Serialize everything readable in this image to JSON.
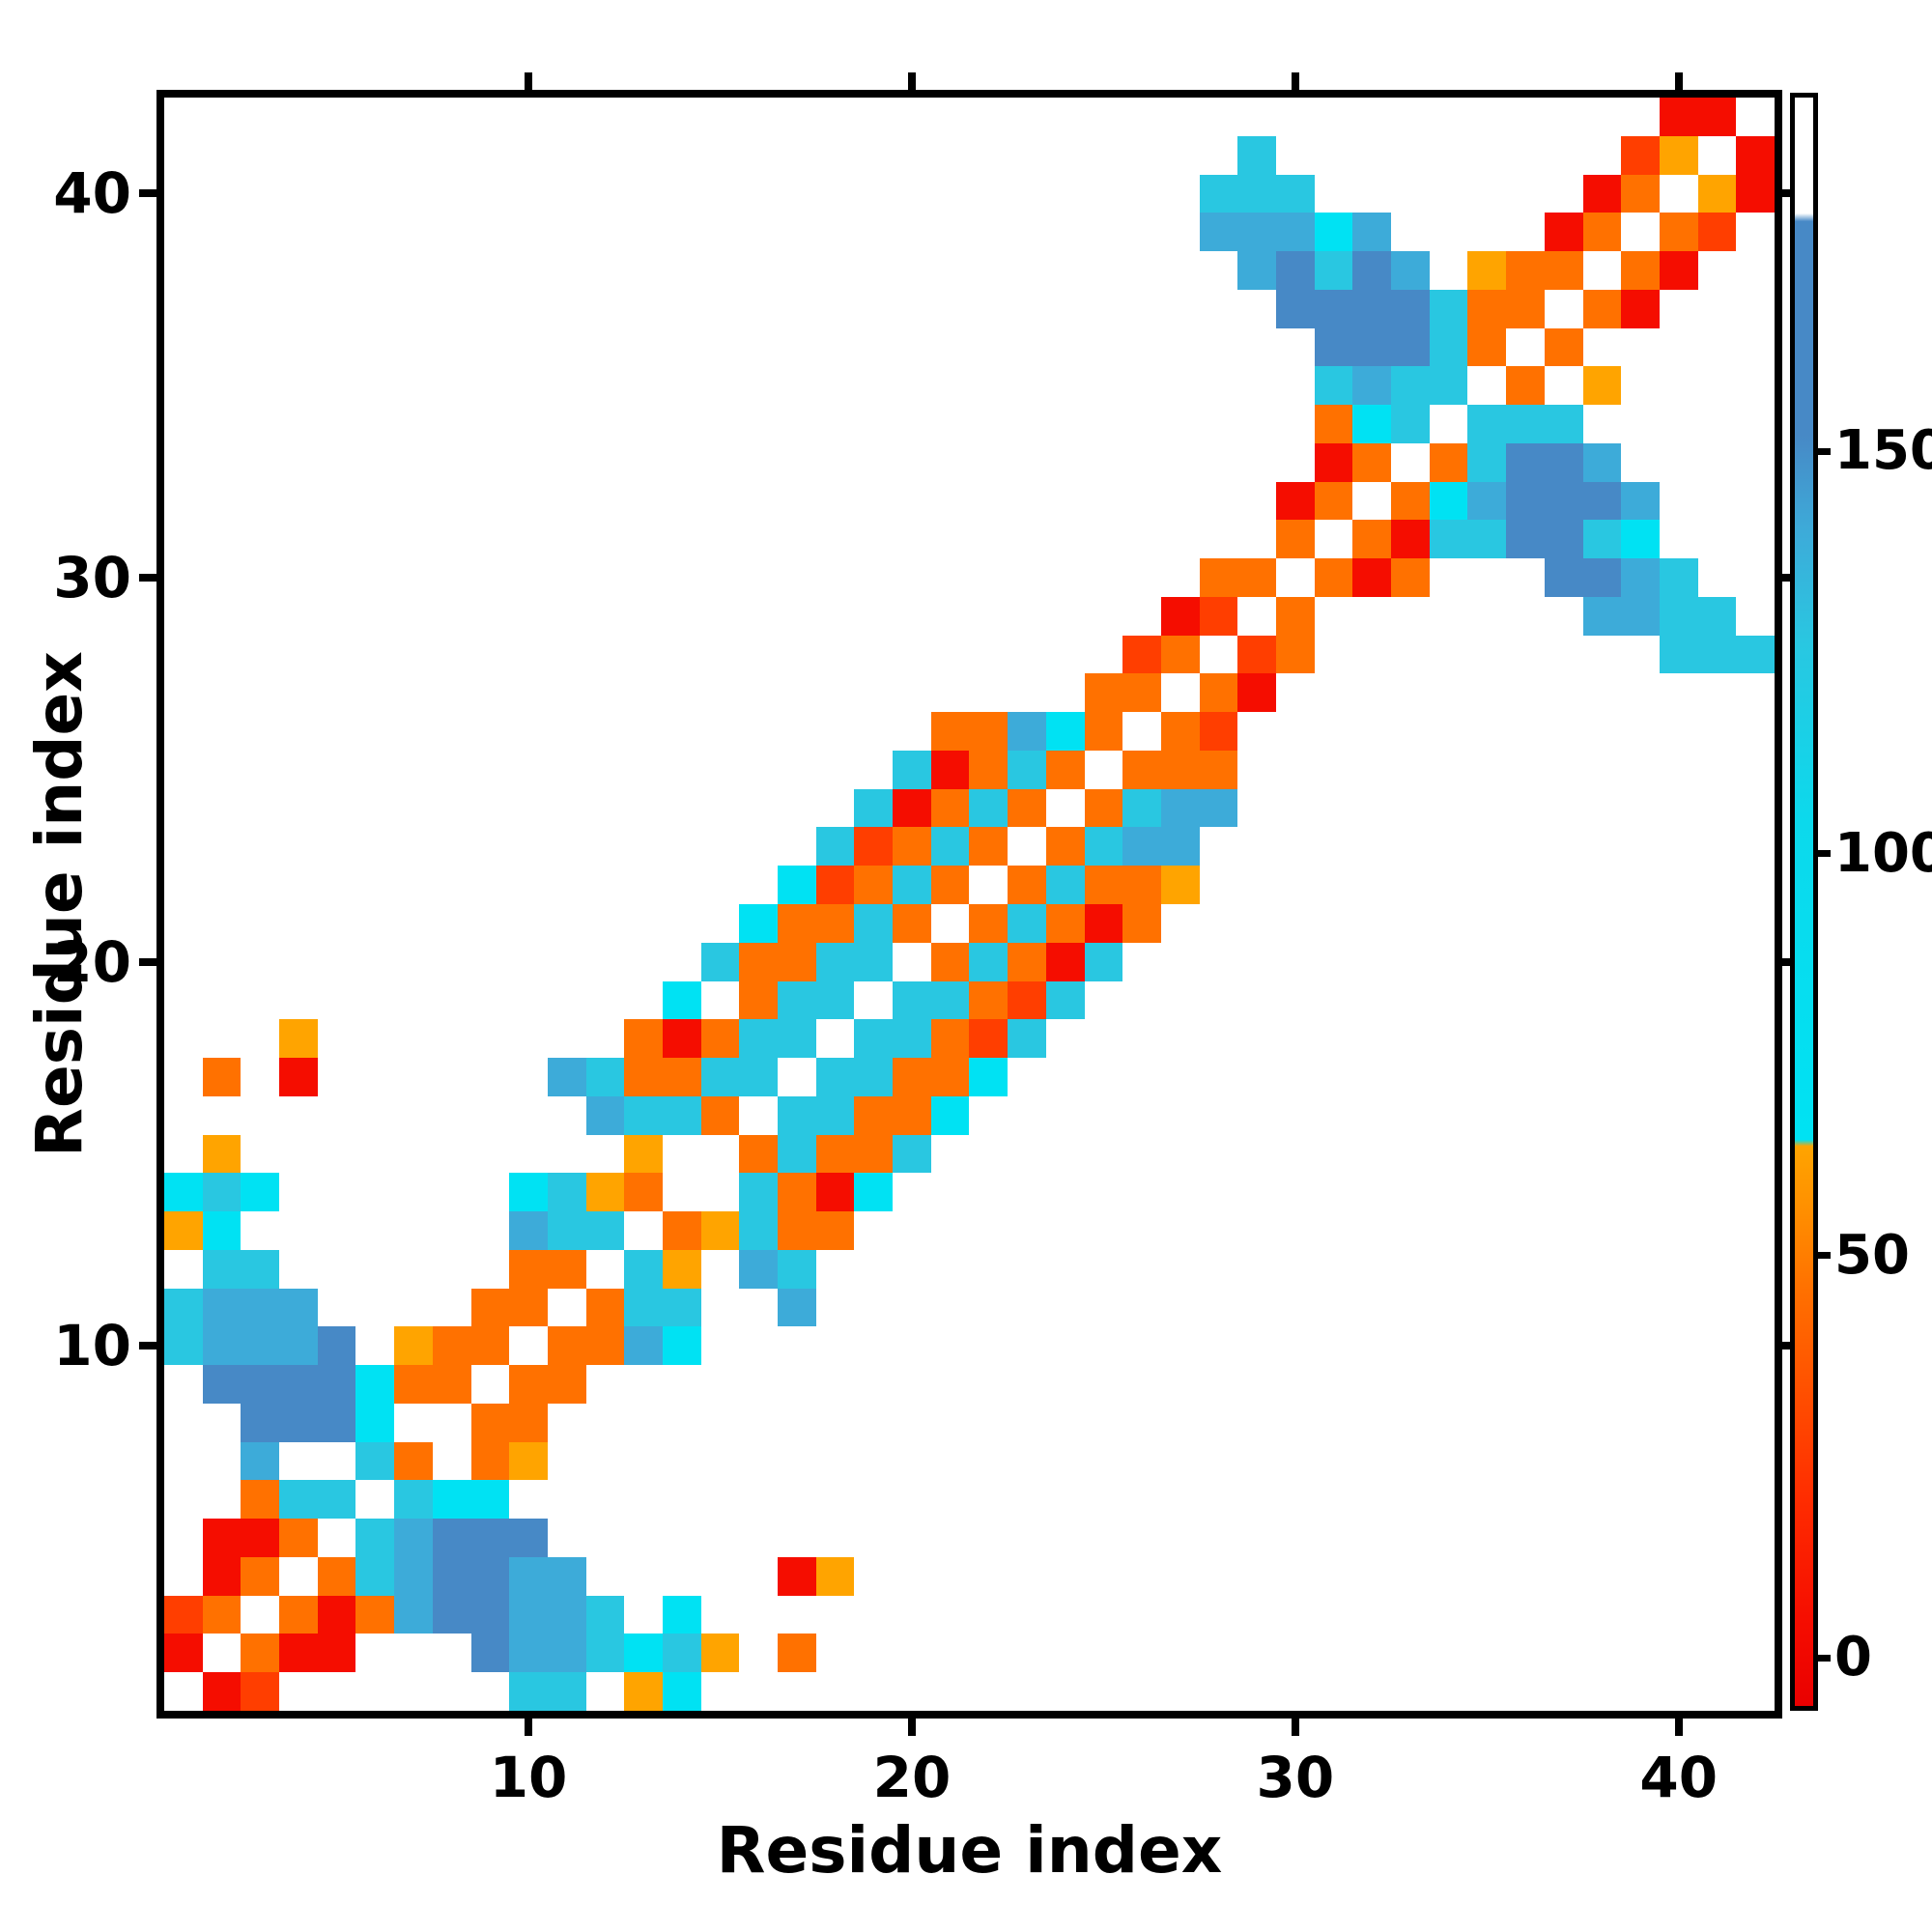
{
  "figure": {
    "x_axis": {
      "label": "Residue index",
      "ticks": [
        10,
        20,
        30,
        40
      ],
      "range": [
        0.5,
        42.5
      ]
    },
    "y_axis": {
      "label": "Residue index",
      "ticks": [
        10,
        20,
        30,
        40
      ],
      "range": [
        0.5,
        42.5
      ]
    },
    "colorbar": {
      "ticks": [
        0,
        50,
        100,
        150
      ],
      "value_range": [
        -6,
        194
      ],
      "gradient_stops": [
        [
          0.0,
          "#e90000"
        ],
        [
          0.05,
          "#f50c00"
        ],
        [
          0.13,
          "#ff2d00"
        ],
        [
          0.2,
          "#ff5200"
        ],
        [
          0.26,
          "#ff7100"
        ],
        [
          0.31,
          "#ff9000"
        ],
        [
          0.348,
          "#ffa400"
        ],
        [
          0.352,
          "#00e2f3"
        ],
        [
          0.55,
          "#0cd9ec"
        ],
        [
          0.66,
          "#29c7e1"
        ],
        [
          0.73,
          "#3dabd9"
        ],
        [
          0.79,
          "#4789c6"
        ],
        [
          0.923,
          "#4789c6"
        ],
        [
          0.928,
          "#ffffff"
        ],
        [
          1.0,
          "#ffffff"
        ]
      ]
    }
  },
  "chart_data": {
    "type": "heatmap",
    "title": "",
    "xlabel": "Residue index",
    "ylabel": "Residue index",
    "n_residues": 42,
    "grid": false,
    "legend_position": "right-colorbar",
    "palette": {
      "R": "#f50d00",
      "r": "#ff3e00",
      "o": "#ff7100",
      "a": "#ffa400",
      "c": "#00e2f3",
      "C": "#29c7e1",
      "s": "#3dabd9",
      "b": "#4789c6",
      ".": null
    },
    "palette_approx_values": {
      "R": 5,
      "r": 25,
      "o": 45,
      "a": 62,
      "c": 85,
      "C": 120,
      "s": 142,
      "b": 160,
      ".": null
    },
    "rows_order": "bottom-to-top (row 1 = residue 1 at bottom), 42 chars = columns 1..42",
    "matrix_rows_bottom_to_top": [
      ".Rr......CC.ac............................",
      "R.oRR...bssCcCa.o.........................",
      "ro.oRosbbssC.c............................",
      ".Ro.oCsbbss.....Ra........................",
      ".RRo.Csbbb................................",
      "..oCC.Ccc.................................",
      "..s..Co.oa................................",
      "..bbbc..oo................................",
      ".bbbbcoo.oo...............................",
      "Csssb.aoo.oosc............................",
      "Csss....oo.oCC..s.........................",
      ".CC......oo.Ca.sC.........................",
      "ac.......sCC.oaCoo........................",
      "cCc......cCao..CoRc.......................",
      ".a..........a..oCooC......................",
      "...........sCCo.CCooc.....................",
      ".o.R......sCooCC.CCooc....................",
      "...a........oRoCC.CCorC...................",
      ".............c.oCC.CCorC..................",
      "..............CooCC.oCoRC.................",
      "...............cooCo.oCoRo................",
      "................croCo.oCooa...............",
      ".................CroCo.oCss...............",
      "..................CRoCo.oCss..............",
      "...................CRoCo.ooo..............",
      "....................oosco.or..............",
      "........................oo.oR.............",
      ".........................ro.ro.........CCC",
      "..........................Rr.o.......ssCC.",
      "...........................oo.oRo...bbsC..",
      ".............................o.oRCCbbCc...",
      ".............................Ro.ocsbbbs...",
      "..............................Ro.oCbbs....",
      "..............................ocC.CCC.....",
      "..............................CsCC.o.a....",
      "..............................bbbCo.o.....",
      ".............................bbbbCoo.oR...",
      "............................sbCbs.aoo.oR..",
      "...........................ssscs....Ro.or.",
      "...........................CCC.......Ro.aR",
      "............................C.........ra.R",
      ".......................................RR."
    ]
  }
}
